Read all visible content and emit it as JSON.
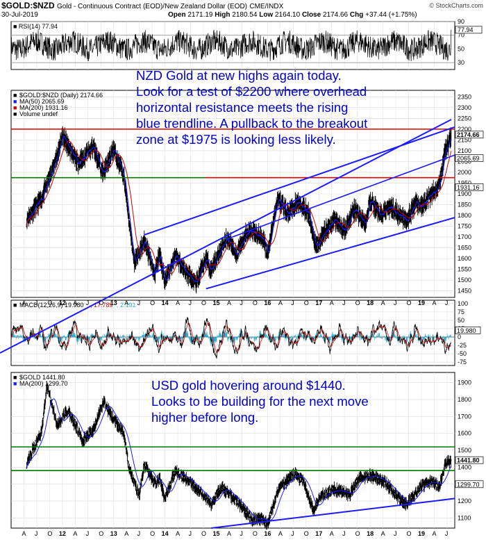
{
  "header": {
    "symbol": "$GOLD:$NZD",
    "description": "Gold - Continuous Contract (EOD)/New Zealand Dollar (EOD)",
    "exchange": "CME/INDX",
    "date": "30-Jul-2019",
    "open_label": "Open",
    "open": "2171.19",
    "high_label": "High",
    "high": "2180.54",
    "low_label": "Low",
    "low": "2164.10",
    "close_label": "Close",
    "close": "2174.66",
    "chg_label": "Chg",
    "chg": "+37.44 (+1.75%)",
    "site": "© StockCharts.com"
  },
  "annotations": {
    "nzd": "NZD Gold at new highs again today.\nLook for a test of $2200 where overhead\nhorizontal resistance meets the rising\nblue trendline. A pullback to the breakout\nzone at $1975 is looking less likely.",
    "usd": "USD gold hovering around $1440.\nLooks to be building for the next move\nhigher before long."
  },
  "colors": {
    "price": "#000000",
    "ma50": "#1a1aff",
    "ma200": "#cc0000",
    "trendline": "#1a1aff",
    "resistance": "#dd0000",
    "support": "#007700",
    "macd_hist": "#33aacc",
    "annotation": "#0000cc"
  },
  "chart_data": [
    {
      "id": "rsi",
      "type": "line",
      "title": "RSI(14) 77.94",
      "ylim": [
        20,
        90
      ],
      "yticks": [
        90,
        70,
        50,
        30
      ],
      "last_value": 77.94,
      "reference_lines": [
        70,
        30
      ]
    },
    {
      "id": "nzd",
      "type": "line",
      "title": "$GOLD:$NZD (Daily) 2174.66",
      "series": [
        {
          "name": "$GOLD:$NZD (Daily) 2174.66",
          "last": 2174.66,
          "x": [
            2011.3,
            2011.6,
            2011.9,
            2012.0,
            2012.3,
            2012.6,
            2012.8,
            2013.0,
            2013.2,
            2013.4,
            2013.6,
            2013.8,
            2013.9,
            2014.0,
            2014.2,
            2014.4,
            2014.6,
            2014.8,
            2014.9,
            2015.2,
            2015.4,
            2015.6,
            2015.9,
            2016.0,
            2016.2,
            2016.4,
            2016.6,
            2016.8,
            2016.95,
            2017.1,
            2017.3,
            2017.5,
            2017.7,
            2017.9,
            2018.0,
            2018.2,
            2018.4,
            2018.6,
            2018.7,
            2018.9,
            2019.0,
            2019.2,
            2019.35,
            2019.45,
            2019.58
          ],
          "y": [
            1780,
            1880,
            2080,
            2170,
            2040,
            2120,
            1990,
            2110,
            1980,
            1580,
            1680,
            1530,
            1620,
            1490,
            1620,
            1540,
            1480,
            1600,
            1550,
            1700,
            1620,
            1730,
            1700,
            1620,
            1880,
            1810,
            1860,
            1810,
            1650,
            1720,
            1780,
            1730,
            1830,
            1760,
            1870,
            1800,
            1840,
            1800,
            1770,
            1860,
            1840,
            1900,
            1940,
            2080,
            2174.66
          ]
        },
        {
          "name": "MA(50) 2065.69",
          "last": 2065.69
        },
        {
          "name": "MA(200) 1931.16",
          "last": 1931.16
        },
        {
          "name": "Volume undef"
        }
      ],
      "ylim": [
        1420,
        2380
      ],
      "yticks": [
        2350,
        2300,
        2250,
        2200,
        2150,
        2100,
        2050,
        2000,
        1950,
        1900,
        1850,
        1800,
        1750,
        1700,
        1650,
        1600,
        1550,
        1500,
        1450
      ],
      "horizontal_lines": [
        2200,
        1975
      ],
      "value_tags": [
        2174.66,
        2065.69,
        1931.16
      ]
    },
    {
      "id": "macd",
      "type": "line",
      "title": "MACD(12,26,9) 19.980, 17.789, 2.191",
      "series": [
        {
          "name": "MACD(12,26,9) 19.980",
          "last": 19.98
        },
        {
          "name": "17.789",
          "last": 17.789
        },
        {
          "name": "2.191",
          "last": 2.191
        }
      ],
      "ylim": [
        -85,
        110
      ],
      "yticks": [
        100,
        75,
        50,
        25,
        0,
        -25,
        -50,
        -75
      ]
    },
    {
      "id": "usd",
      "type": "line",
      "title": "$GOLD 1441.80",
      "series": [
        {
          "name": "$GOLD 1441.80",
          "last": 1441.8,
          "x": [
            2011.3,
            2011.6,
            2011.7,
            2011.9,
            2012.1,
            2012.4,
            2012.6,
            2012.8,
            2013.0,
            2013.2,
            2013.3,
            2013.5,
            2013.6,
            2013.8,
            2013.9,
            2014.0,
            2014.2,
            2014.5,
            2014.8,
            2014.9,
            2015.1,
            2015.4,
            2015.7,
            2015.9,
            2016.0,
            2016.2,
            2016.5,
            2016.7,
            2016.9,
            2017.0,
            2017.3,
            2017.6,
            2017.8,
            2018.0,
            2018.3,
            2018.6,
            2018.7,
            2019.0,
            2019.2,
            2019.35,
            2019.45,
            2019.58
          ],
          "y": [
            1420,
            1620,
            1880,
            1650,
            1740,
            1560,
            1620,
            1790,
            1680,
            1600,
            1400,
            1230,
            1420,
            1300,
            1330,
            1210,
            1380,
            1310,
            1220,
            1180,
            1280,
            1200,
            1090,
            1100,
            1060,
            1260,
            1360,
            1320,
            1140,
            1220,
            1270,
            1240,
            1340,
            1350,
            1310,
            1200,
            1180,
            1290,
            1320,
            1280,
            1410,
            1441.8
          ]
        },
        {
          "name": "MA(200) 1299.70",
          "last": 1299.7
        }
      ],
      "ylim": [
        1040,
        1960
      ],
      "yticks": [
        1900,
        1800,
        1700,
        1600,
        1500,
        1400,
        1300,
        1200,
        1100
      ],
      "horizontal_lines": [
        1520,
        1380
      ],
      "value_tags": [
        1441.8,
        1299.7
      ]
    }
  ],
  "x_axis": {
    "labels": [
      "A",
      "J",
      "O",
      "12",
      "A",
      "J",
      "O",
      "13",
      "A",
      "J",
      "O",
      "14",
      "A",
      "J",
      "O",
      "15",
      "A",
      "J",
      "O",
      "16",
      "A",
      "J",
      "O",
      "17",
      "A",
      "J",
      "O",
      "18",
      "A",
      "J",
      "O",
      "19",
      "A",
      "J"
    ],
    "positions": [
      2011.25,
      2011.5,
      2011.75,
      2012.0,
      2012.25,
      2012.5,
      2012.75,
      2013.0,
      2013.25,
      2013.5,
      2013.75,
      2014.0,
      2014.25,
      2014.5,
      2014.75,
      2015.0,
      2015.25,
      2015.5,
      2015.75,
      2016.0,
      2016.25,
      2016.5,
      2016.75,
      2017.0,
      2017.25,
      2017.5,
      2017.75,
      2018.0,
      2018.25,
      2018.5,
      2018.75,
      2019.0,
      2019.25,
      2019.5
    ]
  }
}
